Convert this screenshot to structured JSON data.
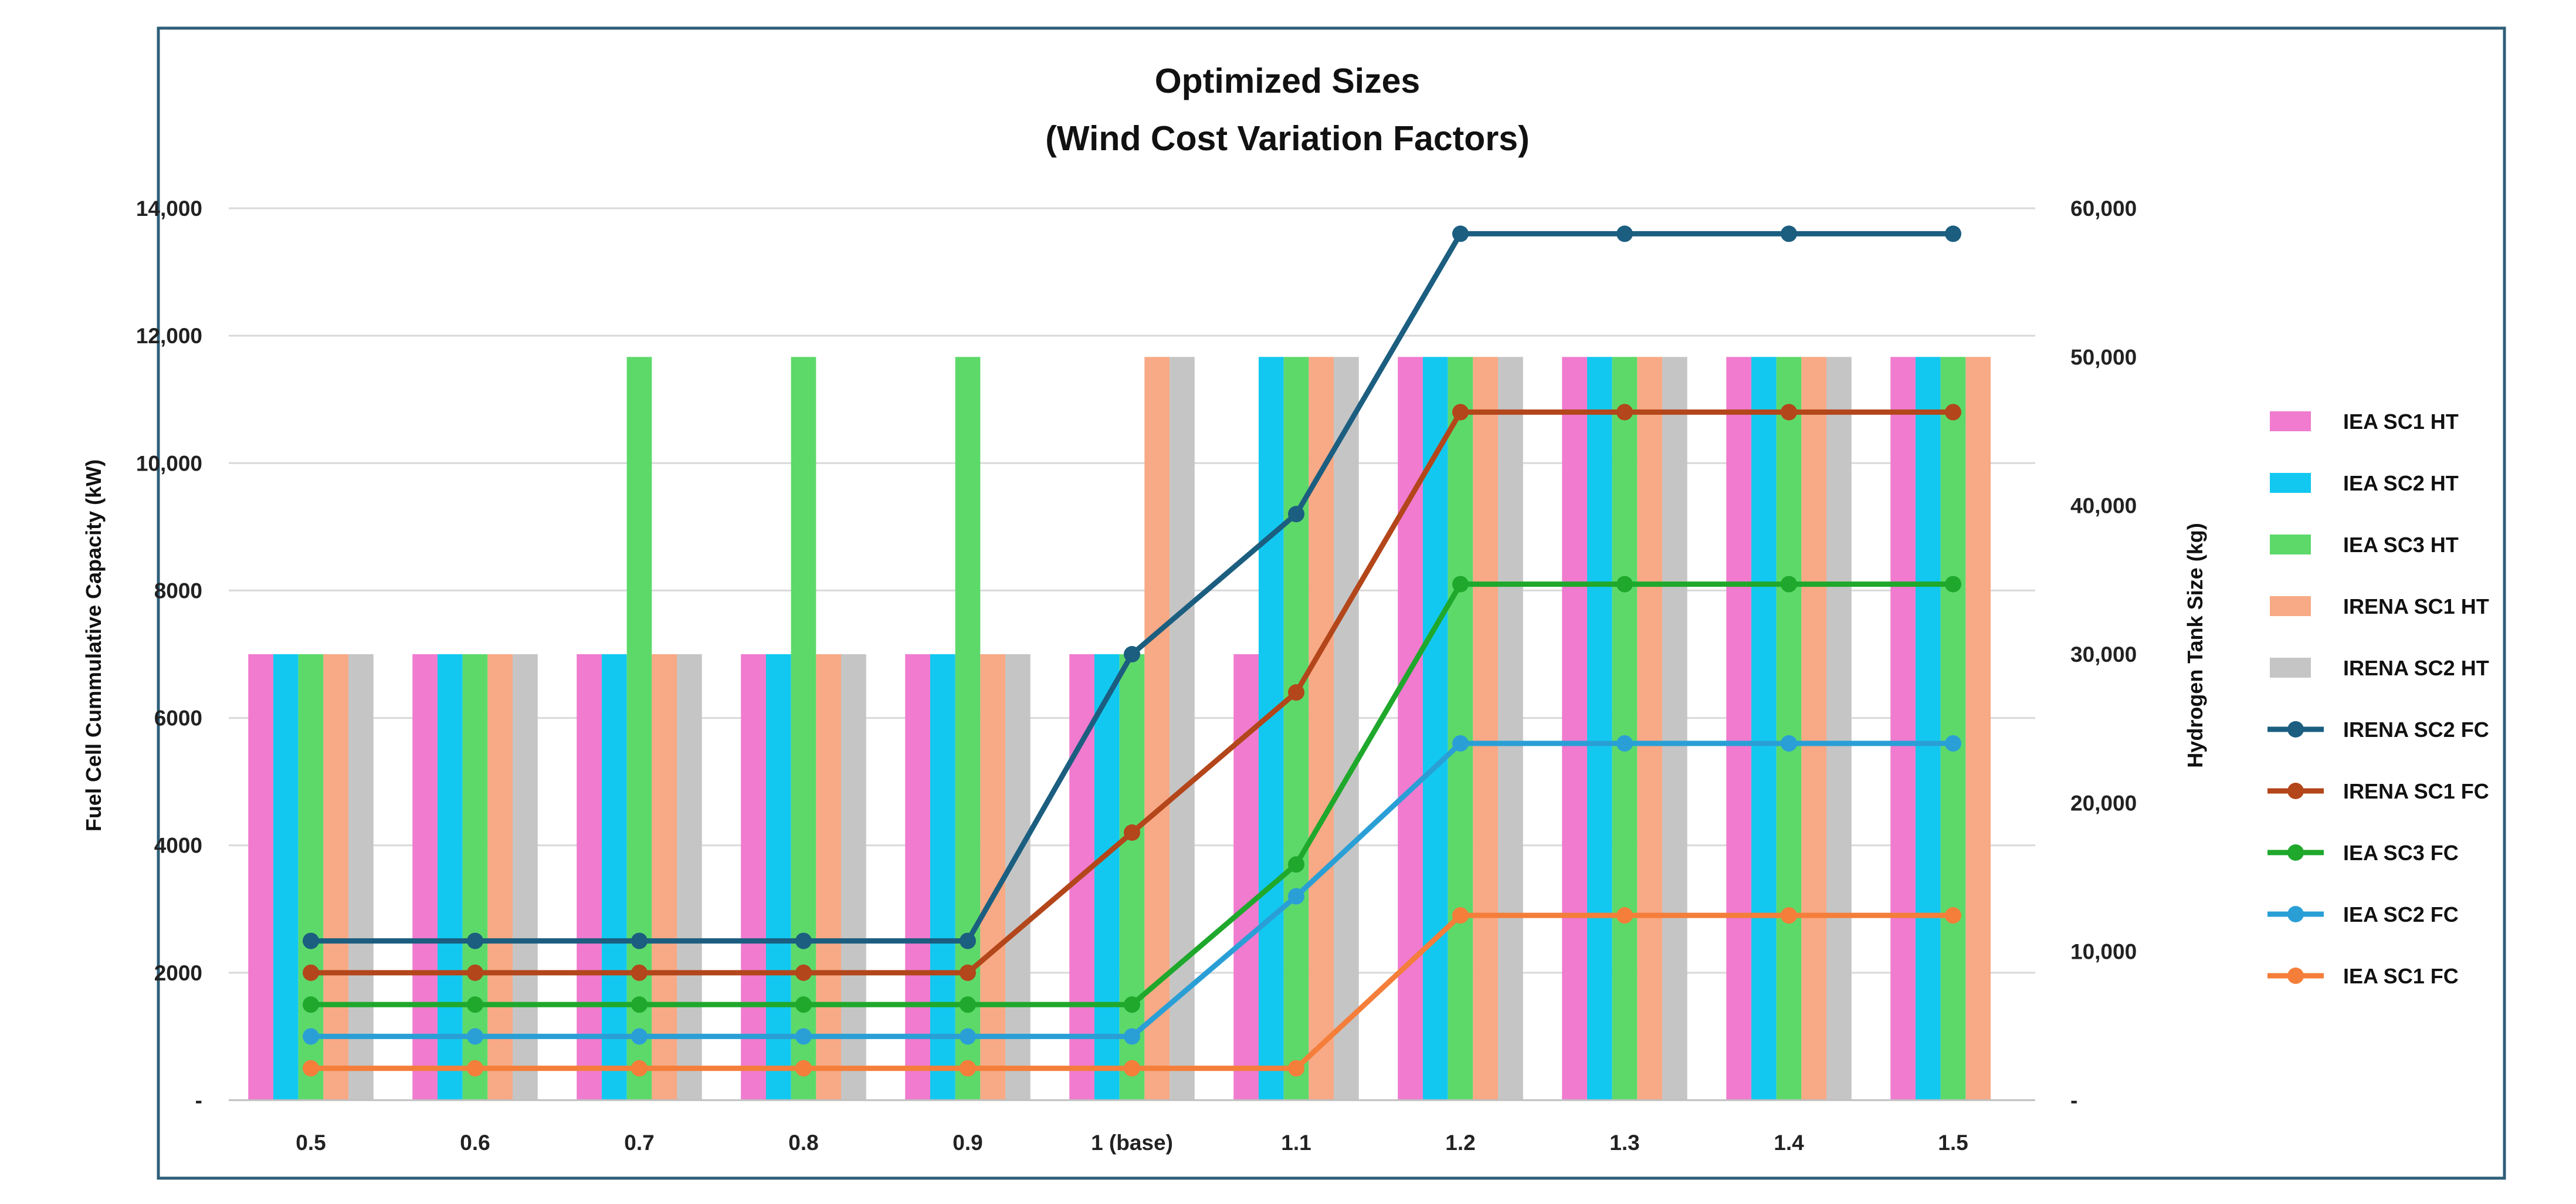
{
  "chart_data": {
    "type": "bar",
    "title_lines": [
      "Optimized Sizes",
      "(Wind Cost Variation Factors)"
    ],
    "categories": [
      "0.5",
      "0.6",
      "0.7",
      "0.8",
      "0.9",
      "1 (base)",
      "1.1",
      "1.2",
      "1.3",
      "1.4",
      "1.5"
    ],
    "y_left": {
      "label": "Fuel Cell Cummulative  Capacity  (kW)",
      "range": [
        0,
        14000
      ],
      "ticks": [
        "-",
        "2000",
        "4000",
        "6000",
        "8000",
        "10,000",
        "12,000",
        "14,000"
      ]
    },
    "y_right": {
      "label": "Hydrogen Tank Size (kg)",
      "range": [
        0,
        60000
      ],
      "ticks": [
        "-",
        "10,000",
        "20,000",
        "30,000",
        "40,000",
        "50,000",
        "60,000"
      ]
    },
    "grid": true,
    "legend_position": "right",
    "bar_series": [
      {
        "name": "IEA SC1 HT",
        "color": "#F07BCF",
        "axis": "right",
        "values": [
          30000,
          30000,
          30000,
          30000,
          30000,
          30000,
          30000,
          50000,
          50000,
          50000,
          50000
        ]
      },
      {
        "name": "IEA SC2 HT",
        "color": "#12C8F0",
        "axis": "right",
        "values": [
          30000,
          30000,
          30000,
          30000,
          30000,
          30000,
          50000,
          50000,
          50000,
          50000,
          50000
        ]
      },
      {
        "name": "IEA SC3 HT",
        "color": "#5DD96A",
        "axis": "right",
        "values": [
          30000,
          30000,
          50000,
          50000,
          50000,
          30000,
          50000,
          50000,
          50000,
          50000,
          50000
        ]
      },
      {
        "name": "IRENA SC1 HT",
        "color": "#F8A985",
        "axis": "right",
        "values": [
          30000,
          30000,
          30000,
          30000,
          30000,
          50000,
          50000,
          50000,
          50000,
          50000,
          50000
        ]
      },
      {
        "name": "IRENA SC2 HT",
        "color": "#C5C5C5",
        "axis": "right",
        "values": [
          30000,
          30000,
          30000,
          30000,
          30000,
          50000,
          50000,
          50000,
          50000,
          50000,
          null
        ]
      }
    ],
    "line_series": [
      {
        "name": "IRENA SC2 FC",
        "color": "#1B5E80",
        "axis": "left",
        "values": [
          2500,
          2500,
          2500,
          2500,
          2500,
          7000,
          9200,
          13600,
          13600,
          13600,
          13600
        ]
      },
      {
        "name": "IRENA SC1 FC",
        "color": "#B3461A",
        "axis": "left",
        "values": [
          2000,
          2000,
          2000,
          2000,
          2000,
          4200,
          6400,
          10800,
          10800,
          10800,
          10800
        ]
      },
      {
        "name": "IEA SC3 FC",
        "color": "#1FA82C",
        "axis": "left",
        "values": [
          1500,
          1500,
          1500,
          1500,
          1500,
          1500,
          3700,
          8100,
          8100,
          8100,
          8100
        ]
      },
      {
        "name": "IEA SC2 FC",
        "color": "#2A9FD6",
        "axis": "left",
        "values": [
          1000,
          1000,
          1000,
          1000,
          1000,
          1000,
          3200,
          5600,
          5600,
          5600,
          5600
        ]
      },
      {
        "name": "IEA SC1 FC",
        "color": "#F47E3A",
        "axis": "left",
        "values": [
          500,
          500,
          500,
          500,
          500,
          500,
          500,
          2900,
          2900,
          2900,
          2900
        ]
      }
    ],
    "frame_color": "#2E5F78",
    "grid_color": "#D9D9D9"
  }
}
